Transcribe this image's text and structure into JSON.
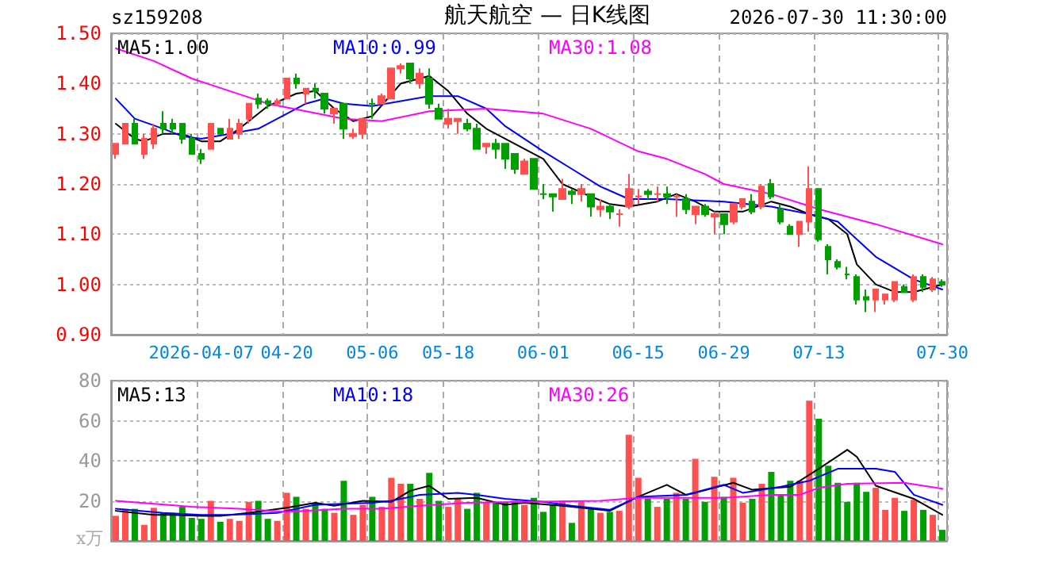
{
  "chart_data": [
    {
      "type": "candlestick",
      "title": "航天航空 — 日K线图",
      "annotations": [
        "sz159208",
        "2026-07-30 11:30:00"
      ],
      "categories": [
        null,
        null,
        null,
        null,
        null,
        null,
        null,
        null,
        null,
        "2026-04-07",
        null,
        null,
        null,
        null,
        null,
        null,
        null,
        null,
        "04-20",
        null,
        null,
        null,
        null,
        null,
        null,
        null,
        null,
        "05-06",
        null,
        null,
        null,
        null,
        null,
        null,
        null,
        "05-18",
        null,
        null,
        null,
        null,
        null,
        null,
        null,
        null,
        null,
        "06-01",
        null,
        null,
        null,
        null,
        null,
        null,
        null,
        null,
        null,
        "06-15",
        null,
        null,
        null,
        null,
        null,
        null,
        null,
        null,
        "06-29",
        null,
        null,
        null,
        null,
        null,
        null,
        null,
        null,
        null,
        "07-13",
        null,
        null,
        null,
        null,
        null,
        null,
        null,
        null,
        null,
        null,
        null,
        null,
        "07-30"
      ],
      "ylim": [
        0.9,
        1.5
      ],
      "yticks": [
        {
          "value": 0.9,
          "label": "0.90"
        },
        {
          "value": 1.0,
          "label": "1.00"
        },
        {
          "value": 1.1,
          "label": "1.10"
        },
        {
          "value": 1.2,
          "label": "1.20"
        },
        {
          "value": 1.3,
          "label": "1.30"
        },
        {
          "value": 1.4,
          "label": "1.40"
        },
        {
          "value": 1.5,
          "label": "1.50"
        }
      ],
      "grid": true,
      "series": [
        {
          "type": "candlestick",
          "ohlc": [
            [
              1.26,
              1.28,
              1.25,
              1.28
            ],
            [
              1.28,
              1.32,
              1.28,
              1.32
            ],
            [
              1.32,
              1.33,
              1.28,
              1.28
            ],
            [
              1.26,
              1.3,
              1.25,
              1.29
            ],
            [
              1.28,
              1.32,
              1.27,
              1.31
            ],
            [
              1.32,
              1.345,
              1.3,
              1.31
            ],
            [
              1.32,
              1.33,
              1.3,
              1.31
            ],
            [
              1.32,
              1.32,
              1.28,
              1.29
            ],
            [
              1.29,
              1.3,
              1.26,
              1.26
            ],
            [
              1.26,
              1.27,
              1.24,
              1.25
            ],
            [
              1.27,
              1.32,
              1.27,
              1.32
            ],
            [
              1.31,
              1.31,
              1.3,
              1.3
            ],
            [
              1.29,
              1.33,
              1.29,
              1.31
            ],
            [
              1.3,
              1.33,
              1.29,
              1.32
            ],
            [
              1.33,
              1.36,
              1.32,
              1.36
            ],
            [
              1.37,
              1.38,
              1.35,
              1.36
            ],
            [
              1.365,
              1.37,
              1.35,
              1.36
            ],
            [
              1.36,
              1.37,
              1.355,
              1.365
            ],
            [
              1.37,
              1.41,
              1.37,
              1.41
            ],
            [
              1.41,
              1.42,
              1.39,
              1.4
            ],
            [
              1.38,
              1.39,
              1.36,
              1.39
            ],
            [
              1.39,
              1.4,
              1.37,
              1.385
            ],
            [
              1.38,
              1.38,
              1.34,
              1.35
            ],
            [
              1.34,
              1.35,
              1.32,
              1.35
            ],
            [
              1.36,
              1.36,
              1.29,
              1.31
            ],
            [
              1.295,
              1.31,
              1.29,
              1.3
            ],
            [
              1.3,
              1.33,
              1.29,
              1.33
            ],
            [
              1.36,
              1.37,
              1.33,
              1.36
            ],
            [
              1.36,
              1.38,
              1.36,
              1.375
            ],
            [
              1.37,
              1.43,
              1.37,
              1.43
            ],
            [
              1.43,
              1.44,
              1.42,
              1.435
            ],
            [
              1.44,
              1.44,
              1.4,
              1.41
            ],
            [
              1.4,
              1.43,
              1.39,
              1.42
            ],
            [
              1.41,
              1.43,
              1.35,
              1.36
            ],
            [
              1.35,
              1.36,
              1.33,
              1.33
            ],
            [
              1.32,
              1.35,
              1.31,
              1.33
            ],
            [
              1.325,
              1.33,
              1.3,
              1.33
            ],
            [
              1.32,
              1.33,
              1.305,
              1.31
            ],
            [
              1.31,
              1.32,
              1.27,
              1.27
            ],
            [
              1.275,
              1.28,
              1.26,
              1.28
            ],
            [
              1.28,
              1.29,
              1.25,
              1.27
            ],
            [
              1.28,
              1.28,
              1.23,
              1.25
            ],
            [
              1.26,
              1.26,
              1.22,
              1.23
            ],
            [
              1.22,
              1.25,
              1.22,
              1.245
            ],
            [
              1.25,
              1.25,
              1.19,
              1.19
            ],
            [
              1.18,
              1.2,
              1.17,
              1.18
            ],
            [
              1.18,
              1.18,
              1.145,
              1.175
            ],
            [
              1.17,
              1.21,
              1.17,
              1.19
            ],
            [
              1.185,
              1.19,
              1.16,
              1.18
            ],
            [
              1.18,
              1.2,
              1.165,
              1.19
            ],
            [
              1.18,
              1.18,
              1.135,
              1.155
            ],
            [
              1.15,
              1.17,
              1.135,
              1.155
            ],
            [
              1.155,
              1.16,
              1.13,
              1.145
            ],
            [
              1.14,
              1.15,
              1.115,
              1.14
            ],
            [
              1.155,
              1.22,
              1.15,
              1.19
            ],
            [
              1.175,
              1.19,
              1.16,
              1.175
            ],
            [
              1.185,
              1.19,
              1.17,
              1.18
            ],
            [
              1.18,
              1.195,
              1.165,
              1.18
            ],
            [
              1.18,
              1.195,
              1.16,
              1.175
            ],
            [
              1.175,
              1.18,
              1.135,
              1.175
            ],
            [
              1.17,
              1.18,
              1.14,
              1.15
            ],
            [
              1.14,
              1.155,
              1.12,
              1.155
            ],
            [
              1.155,
              1.16,
              1.135,
              1.14
            ],
            [
              1.135,
              1.145,
              1.1,
              1.14
            ],
            [
              1.14,
              1.14,
              1.1,
              1.12
            ],
            [
              1.125,
              1.16,
              1.12,
              1.16
            ],
            [
              1.155,
              1.17,
              1.15,
              1.17
            ],
            [
              1.165,
              1.18,
              1.14,
              1.145
            ],
            [
              1.155,
              1.2,
              1.15,
              1.195
            ],
            [
              1.2,
              1.21,
              1.17,
              1.175
            ],
            [
              1.15,
              1.16,
              1.12,
              1.125
            ],
            [
              1.115,
              1.12,
              1.1,
              1.1
            ],
            [
              1.1,
              1.125,
              1.075,
              1.125
            ],
            [
              1.125,
              1.235,
              1.105,
              1.19
            ],
            [
              1.19,
              1.19,
              1.085,
              1.09
            ],
            [
              1.075,
              1.08,
              1.02,
              1.05
            ],
            [
              1.045,
              1.05,
              1.03,
              1.035
            ],
            [
              1.02,
              1.035,
              1.01,
              1.02
            ],
            [
              1.015,
              1.02,
              0.96,
              0.97
            ],
            [
              0.975,
              0.99,
              0.945,
              0.97
            ],
            [
              0.97,
              0.99,
              0.945,
              0.99
            ],
            [
              0.97,
              0.98,
              0.96,
              0.98
            ],
            [
              0.97,
              1.005,
              0.965,
              1.005
            ],
            [
              0.995,
              1.0,
              0.985,
              0.985
            ],
            [
              0.97,
              1.02,
              0.965,
              1.015
            ],
            [
              1.015,
              1.02,
              0.985,
              0.995
            ],
            [
              0.99,
              1.015,
              0.985,
              1.01
            ],
            [
              1.005,
              1.01,
              0.995,
              1.0
            ]
          ],
          "colors": [
            "#ff5050",
            "#ff5050",
            "#00a000",
            "#ff5050",
            "#ff5050",
            "#00a000",
            "#00a000",
            "#00a000",
            "#00a000",
            "#00a000",
            "#ff5050",
            "#00a000",
            "#ff5050",
            "#ff5050",
            "#ff5050",
            "#00a000",
            "#00a000",
            "#ff5050",
            "#ff5050",
            "#00a000",
            "#ff5050",
            "#00a000",
            "#00a000",
            "#ff5050",
            "#00a000",
            "#ff5050",
            "#ff5050",
            "#00a000",
            "#ff5050",
            "#ff5050",
            "#ff5050",
            "#00a000",
            "#ff5050",
            "#00a000",
            "#00a000",
            "#ff5050",
            "#ff5050",
            "#00a000",
            "#00a000",
            "#ff5050",
            "#00a000",
            "#00a000",
            "#00a000",
            "#ff5050",
            "#00a000",
            "#00a000",
            "#00a000",
            "#ff5050",
            "#00a000",
            "#ff5050",
            "#00a000",
            "#ff5050",
            "#00a000",
            "#ff5050",
            "#ff5050",
            "#ff5050",
            "#00a000",
            "#ff5050",
            "#00a000",
            "#ff5050",
            "#00a000",
            "#ff5050",
            "#00a000",
            "#ff5050",
            "#00a000",
            "#ff5050",
            "#ff5050",
            "#00a000",
            "#ff5050",
            "#00a000",
            "#00a000",
            "#00a000",
            "#ff5050",
            "#ff5050",
            "#00a000",
            "#00a000",
            "#00a000",
            "#00a000",
            "#00a000",
            "#00a000",
            "#ff5050",
            "#ff5050",
            "#ff5050",
            "#00a000",
            "#ff5050",
            "#00a000",
            "#ff5050",
            "#00a000"
          ]
        },
        {
          "type": "line",
          "name": "MA5:1.00",
          "color": "#000000",
          "values": [
            1.32,
            null,
            1.29,
            1.285,
            null,
            1.3,
            null,
            1.3,
            null,
            1.285,
            null,
            1.285,
            null,
            1.31,
            null,
            null,
            1.355,
            null,
            null,
            1.38,
            null,
            1.385,
            null,
            1.35,
            null,
            1.325,
            null,
            1.335,
            null,
            null,
            1.4,
            null,
            null,
            1.415,
            null,
            1.385,
            null,
            1.34,
            null,
            1.31,
            null,
            null,
            1.28,
            null,
            null,
            1.25,
            null,
            1.2,
            null,
            null,
            1.175,
            null,
            1.16,
            null,
            1.155,
            null,
            null,
            1.165,
            null,
            1.18,
            null,
            1.165,
            null,
            1.145,
            null,
            null,
            1.145,
            null,
            null,
            1.165,
            null,
            1.155,
            null,
            1.14,
            null,
            1.13,
            null,
            1.1,
            1.04,
            null,
            1.0,
            null,
            0.985,
            null,
            0.985,
            null,
            null,
            1.0
          ]
        },
        {
          "type": "line",
          "name": "MA10:0.99",
          "color": "#0000ff",
          "values": [
            1.37,
            null,
            1.33,
            null,
            null,
            1.31,
            null,
            1.295,
            null,
            1.29,
            null,
            null,
            1.3,
            null,
            null,
            1.31,
            null,
            null,
            1.34,
            null,
            1.36,
            null,
            1.37,
            null,
            1.36,
            null,
            null,
            1.355,
            null,
            null,
            1.365,
            null,
            null,
            1.375,
            null,
            null,
            1.375,
            null,
            null,
            1.35,
            null,
            1.315,
            null,
            null,
            null,
            1.265,
            null,
            null,
            1.23,
            null,
            null,
            1.195,
            null,
            null,
            1.17,
            null,
            null,
            null,
            1.17,
            null,
            null,
            null,
            null,
            null,
            1.165,
            null,
            null,
            null,
            null,
            1.155,
            null,
            null,
            null,
            1.14,
            null,
            null,
            1.125,
            null,
            1.09,
            null,
            1.055,
            null,
            null,
            null,
            1.01,
            null,
            null,
            0.99
          ]
        },
        {
          "type": "line",
          "name": "MA30:1.08",
          "color": "#ff00ff",
          "values": [
            1.47,
            null,
            null,
            null,
            1.445,
            null,
            null,
            null,
            1.41,
            null,
            null,
            null,
            1.385,
            null,
            null,
            null,
            1.36,
            null,
            null,
            null,
            1.345,
            null,
            null,
            null,
            1.33,
            null,
            null,
            null,
            1.325,
            null,
            null,
            null,
            null,
            1.345,
            null,
            null,
            null,
            null,
            null,
            1.35,
            null,
            null,
            null,
            null,
            null,
            1.34,
            null,
            null,
            null,
            null,
            1.31,
            null,
            null,
            null,
            null,
            1.265,
            null,
            null,
            1.25,
            null,
            null,
            null,
            1.22,
            null,
            1.2,
            null,
            null,
            null,
            null,
            1.18,
            null,
            null,
            null,
            null,
            1.15,
            null,
            null,
            null,
            null,
            null,
            1.12,
            null,
            null,
            null,
            null,
            null,
            null,
            1.08
          ]
        }
      ]
    },
    {
      "type": "bar",
      "ylabel": "x万",
      "tick_labels": "y",
      "categories": [
        null,
        null,
        null,
        null,
        null,
        null,
        null,
        null,
        null,
        null,
        null,
        null,
        null,
        null,
        null,
        null,
        null,
        null,
        null,
        null,
        null,
        null,
        null,
        null,
        null,
        null,
        null,
        null,
        null,
        null,
        null,
        null,
        null,
        null,
        null,
        null,
        null,
        null,
        null,
        null,
        null,
        null,
        null,
        null,
        null,
        null,
        null,
        null,
        null,
        null,
        null,
        null,
        null,
        null,
        null,
        null,
        null,
        null,
        null,
        null,
        null,
        null,
        null,
        null,
        null,
        null,
        null,
        null,
        null,
        null,
        null,
        null,
        null,
        null,
        null,
        null,
        null,
        null,
        null,
        null,
        null,
        null,
        null,
        null,
        null,
        null,
        null,
        null
      ],
      "ylim": [
        0,
        80
      ],
      "yticks": [
        20,
        40,
        60,
        80
      ],
      "grid": true,
      "series": [
        {
          "type": "bar",
          "values": [
            12.5,
            16,
            16,
            8,
            16.5,
            14,
            14,
            17,
            11.5,
            11,
            20,
            9.5,
            11,
            10,
            19.5,
            20,
            11,
            10,
            24,
            22,
            16,
            19,
            16,
            14,
            30,
            13,
            18,
            22,
            17,
            31.5,
            28.5,
            28.5,
            21,
            34,
            20,
            17,
            21,
            16,
            24,
            19,
            19,
            19,
            20,
            18,
            21.5,
            14.5,
            18,
            20,
            9,
            19.5,
            16.5,
            14,
            14.5,
            15,
            53,
            31.5,
            21,
            17,
            21,
            24,
            21,
            41,
            19.5,
            32,
            22,
            31.5,
            19,
            21,
            28.5,
            34.5,
            23,
            30,
            30,
            70,
            61,
            37.5,
            29,
            19.5,
            29,
            24.5,
            26.5,
            15.5,
            21.5,
            15,
            20.5,
            15.5,
            13,
            5.5
          ],
          "colors": [
            "#ff5050",
            "#ff5050",
            "#00a000",
            "#ff5050",
            "#ff5050",
            "#00a000",
            "#00a000",
            "#00a000",
            "#00a000",
            "#00a000",
            "#ff5050",
            "#00a000",
            "#ff5050",
            "#ff5050",
            "#ff5050",
            "#00a000",
            "#00a000",
            "#ff5050",
            "#ff5050",
            "#00a000",
            "#ff5050",
            "#00a000",
            "#00a000",
            "#ff5050",
            "#00a000",
            "#ff5050",
            "#ff5050",
            "#00a000",
            "#ff5050",
            "#ff5050",
            "#ff5050",
            "#00a000",
            "#ff5050",
            "#00a000",
            "#00a000",
            "#ff5050",
            "#ff5050",
            "#00a000",
            "#00a000",
            "#ff5050",
            "#00a000",
            "#00a000",
            "#00a000",
            "#ff5050",
            "#00a000",
            "#00a000",
            "#00a000",
            "#ff5050",
            "#00a000",
            "#ff5050",
            "#00a000",
            "#ff5050",
            "#00a000",
            "#ff5050",
            "#ff5050",
            "#ff5050",
            "#00a000",
            "#ff5050",
            "#00a000",
            "#ff5050",
            "#00a000",
            "#ff5050",
            "#00a000",
            "#ff5050",
            "#00a000",
            "#ff5050",
            "#ff5050",
            "#00a000",
            "#ff5050",
            "#00a000",
            "#00a000",
            "#00a000",
            "#ff5050",
            "#ff5050",
            "#00a000",
            "#00a000",
            "#00a000",
            "#00a000",
            "#00a000",
            "#00a000",
            "#ff5050",
            "#ff5050",
            "#ff5050",
            "#00a000",
            "#ff5050",
            "#00a000",
            "#ff5050",
            "#00a000"
          ]
        },
        {
          "type": "line",
          "name": "MA5:13",
          "color": "#000000",
          "values": [
            15,
            null,
            null,
            null,
            13,
            null,
            13,
            null,
            null,
            12.5,
            null,
            12.5,
            null,
            null,
            14,
            null,
            null,
            null,
            16.5,
            null,
            null,
            19,
            null,
            17.5,
            null,
            null,
            20,
            null,
            null,
            19.5,
            null,
            25,
            null,
            27.5,
            null,
            21,
            null,
            null,
            21.5,
            null,
            null,
            18,
            null,
            19,
            null,
            null,
            null,
            17.5,
            null,
            null,
            null,
            null,
            15,
            null,
            null,
            22,
            null,
            null,
            28,
            null,
            23,
            24,
            null,
            null,
            null,
            29,
            null,
            25.5,
            null,
            null,
            null,
            27,
            null,
            null,
            36,
            null,
            null,
            45.5,
            42,
            null,
            27.5,
            null,
            null,
            null,
            21,
            null,
            null,
            13
          ]
        },
        {
          "type": "line",
          "name": "MA10:18",
          "color": "#0000ff",
          "values": [
            16,
            null,
            null,
            null,
            null,
            14,
            null,
            null,
            null,
            13,
            null,
            null,
            13,
            null,
            null,
            null,
            null,
            14,
            null,
            null,
            null,
            18,
            null,
            null,
            null,
            null,
            null,
            19,
            null,
            20,
            null,
            null,
            23,
            null,
            null,
            null,
            24,
            null,
            23,
            null,
            null,
            21,
            null,
            null,
            null,
            19.5,
            null,
            null,
            17.5,
            null,
            null,
            null,
            15.5,
            null,
            null,
            22,
            null,
            null,
            null,
            null,
            23,
            null,
            null,
            null,
            28,
            null,
            24,
            null,
            null,
            null,
            27,
            null,
            null,
            30,
            null,
            null,
            36,
            null,
            null,
            null,
            36,
            null,
            34.5,
            null,
            23,
            null,
            null,
            18
          ]
        },
        {
          "type": "line",
          "name": "MA30:26",
          "color": "#ff00ff",
          "values": [
            20,
            null,
            null,
            null,
            18.5,
            null,
            null,
            null,
            17,
            null,
            null,
            null,
            null,
            16,
            null,
            null,
            null,
            null,
            14.5,
            null,
            null,
            null,
            null,
            null,
            16,
            null,
            null,
            null,
            16,
            null,
            null,
            null,
            17.5,
            null,
            null,
            null,
            null,
            19,
            null,
            null,
            null,
            null,
            null,
            19.5,
            null,
            null,
            null,
            null,
            null,
            null,
            null,
            20,
            null,
            null,
            null,
            21.5,
            null,
            null,
            null,
            null,
            null,
            null,
            null,
            null,
            21.5,
            null,
            null,
            null,
            null,
            23,
            null,
            null,
            23,
            null,
            26.5,
            null,
            null,
            28.5,
            null,
            null,
            null,
            null,
            null,
            29,
            null,
            27.5,
            null,
            26
          ]
        }
      ]
    }
  ]
}
